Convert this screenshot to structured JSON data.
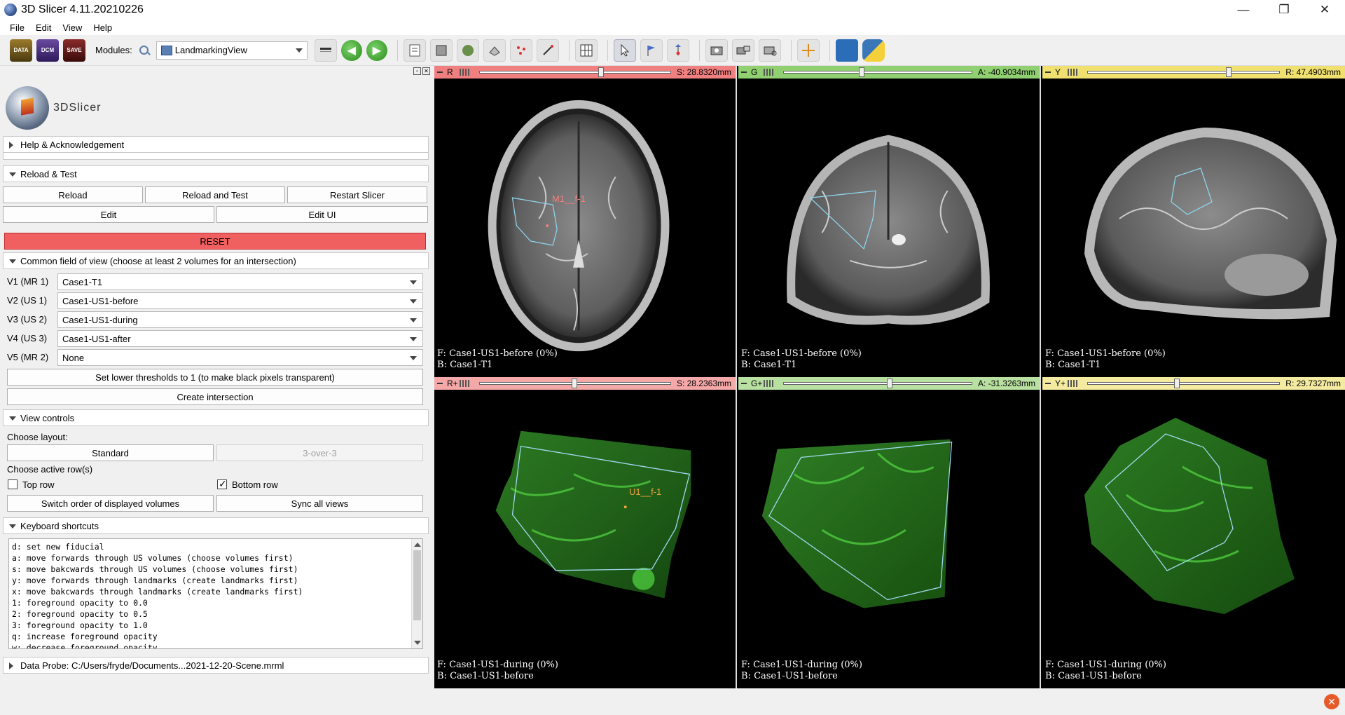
{
  "window": {
    "title": "3D Slicer 4.11.20210226"
  },
  "menu": [
    "File",
    "Edit",
    "View",
    "Help"
  ],
  "toolbar": {
    "data_label": "DATA",
    "dcm_label": "DCM",
    "save_label": "SAVE",
    "modules_label": "Modules:",
    "module_selected": "LandmarkingView"
  },
  "panel": {
    "logo_text": "3DSlicer",
    "help_section": "Help & Acknowledgement",
    "reload_section": "Reload & Test",
    "reload": "Reload",
    "reload_test": "Reload and Test",
    "restart": "Restart Slicer",
    "edit": "Edit",
    "edit_ui": "Edit UI",
    "reset": "RESET",
    "common_fov": "Common field of view (choose at least 2 volumes for an intersection)",
    "volumes": [
      {
        "label": "V1 (MR 1)",
        "value": "Case1-T1"
      },
      {
        "label": "V2 (US 1)",
        "value": "Case1-US1-before"
      },
      {
        "label": "V3 (US 2)",
        "value": "Case1-US1-during"
      },
      {
        "label": "V4 (US 3)",
        "value": "Case1-US1-after"
      },
      {
        "label": "V5 (MR 2)",
        "value": "None"
      }
    ],
    "set_thresholds": "Set lower thresholds to 1 (to make black pixels transparent)",
    "create_intersection": "Create intersection",
    "view_controls": "View controls",
    "choose_layout": "Choose layout:",
    "standard": "Standard",
    "three_over_three": "3-over-3",
    "choose_rows": "Choose active row(s)",
    "top_row": "Top row",
    "bottom_row": "Bottom row",
    "top_row_checked": false,
    "bottom_row_checked": true,
    "switch_order": "Switch order of displayed volumes",
    "sync_views": "Sync all views",
    "keyboard_shortcuts": "Keyboard shortcuts",
    "shortcuts": [
      "d: set new fiducial",
      "a: move forwards through US volumes (choose volumes first)",
      "s: move bakcwards through US volumes (choose volumes first)",
      "y: move forwards through landmarks (create landmarks first)",
      "x: move bakcwards through landmarks (create landmarks first)",
      "1: foreground opacity to 0.0",
      "2: foreground opacity to 0.5",
      "3: foreground opacity to 1.0",
      "q: increase foreground opacity",
      "w: decrease foreground opacity"
    ],
    "data_probe": "Data Probe: C:/Users/fryde/Documents...2021-12-20-Scene.mrml"
  },
  "views": [
    {
      "label": "R",
      "offset": "S: 28.8320mm",
      "fg": "F: Case1-US1-before (0%)",
      "bg": "B: Case1-T1",
      "color": "#f08080",
      "slider": 0.62,
      "kind": "axial",
      "fiducial": "M1__f-1"
    },
    {
      "label": "G",
      "offset": "A: -40.9034mm",
      "fg": "F: Case1-US1-before (0%)",
      "bg": "B: Case1-T1",
      "color": "#90d070",
      "slider": 0.4,
      "kind": "coronal"
    },
    {
      "label": "Y",
      "offset": "R: 47.4903mm",
      "fg": "F: Case1-US1-before (0%)",
      "bg": "B: Case1-T1",
      "color": "#f0e070",
      "slider": 0.72,
      "kind": "sagittal"
    },
    {
      "label": "R+",
      "offset": "S: 28.2363mm",
      "fg": "F: Case1-US1-during (0%)",
      "bg": "B: Case1-US1-before",
      "color": "#f5a8a8",
      "slider": 0.48,
      "kind": "us1",
      "fiducial": "U1__f-1"
    },
    {
      "label": "G+",
      "offset": "A: -31.3263mm",
      "fg": "F: Case1-US1-during (0%)",
      "bg": "B: Case1-US1-before",
      "color": "#b8e0a0",
      "slider": 0.55,
      "kind": "us2"
    },
    {
      "label": "Y+",
      "offset": "R: 29.7327mm",
      "fg": "F: Case1-US1-during (0%)",
      "bg": "B: Case1-US1-before",
      "color": "#f5eba0",
      "slider": 0.45,
      "kind": "us3"
    }
  ]
}
